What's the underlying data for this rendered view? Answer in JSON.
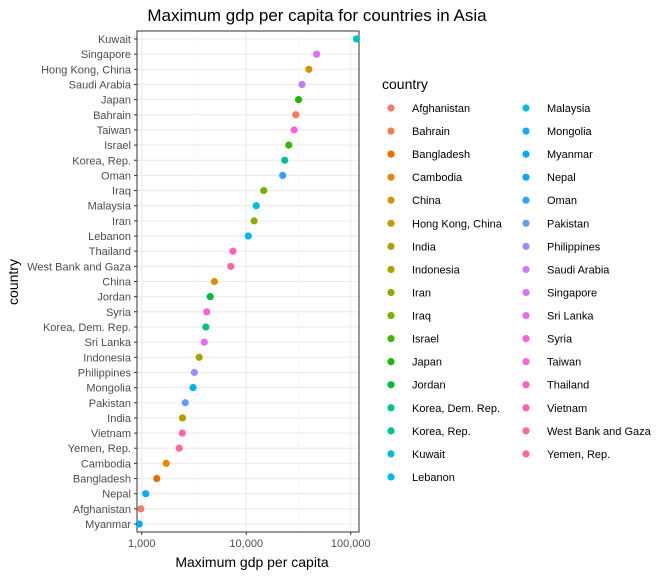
{
  "chart_data": {
    "type": "scatter",
    "title": "Maximum gdp per capita for countries in Asia",
    "xlabel": "Maximum gdp per capita",
    "ylabel": "country",
    "x_scale": "log10",
    "xlim": [
      900,
      120000
    ],
    "x_ticks": [
      1000,
      10000,
      100000
    ],
    "x_tick_labels": [
      "1,000",
      "10,000",
      "100,000"
    ],
    "grid": true,
    "legend": {
      "title": "country",
      "position": "right",
      "columns": 2
    },
    "points": [
      {
        "country": "Kuwait",
        "value": 113523,
        "color": "#00BFC4"
      },
      {
        "country": "Singapore",
        "value": 47143,
        "color": "#DE71F9"
      },
      {
        "country": "Hong Kong, China",
        "value": 39725,
        "color": "#C49A00"
      },
      {
        "country": "Saudi Arabia",
        "value": 34168,
        "color": "#C77CFF"
      },
      {
        "country": "Japan",
        "value": 31656,
        "color": "#1FB700"
      },
      {
        "country": "Bahrain",
        "value": 29796,
        "color": "#F37B59"
      },
      {
        "country": "Taiwan",
        "value": 28718,
        "color": "#F564E3"
      },
      {
        "country": "Israel",
        "value": 25523,
        "color": "#39B600"
      },
      {
        "country": "Korea, Rep.",
        "value": 23348,
        "color": "#00BF96"
      },
      {
        "country": "Oman",
        "value": 22316,
        "color": "#35A2FF"
      },
      {
        "country": "Iraq",
        "value": 14688,
        "color": "#7CAE00"
      },
      {
        "country": "Malaysia",
        "value": 12452,
        "color": "#00BBDA"
      },
      {
        "country": "Iran",
        "value": 11889,
        "color": "#8CAB00"
      },
      {
        "country": "Lebanon",
        "value": 10461,
        "color": "#00B8E5"
      },
      {
        "country": "Thailand",
        "value": 7458,
        "color": "#FF61C3"
      },
      {
        "country": "West Bank and Gaza",
        "value": 7111,
        "color": "#FF6A98"
      },
      {
        "country": "China",
        "value": 4959,
        "color": "#D39200"
      },
      {
        "country": "Jordan",
        "value": 4520,
        "color": "#00BA38"
      },
      {
        "country": "Syria",
        "value": 4185,
        "color": "#FB61D7"
      },
      {
        "country": "Korea, Dem. Rep.",
        "value": 4106,
        "color": "#00C08B"
      },
      {
        "country": "Sri Lanka",
        "value": 3970,
        "color": "#E76BF3"
      },
      {
        "country": "Indonesia",
        "value": 3541,
        "color": "#A3A500"
      },
      {
        "country": "Philippines",
        "value": 3190,
        "color": "#9590FF"
      },
      {
        "country": "Mongolia",
        "value": 3096,
        "color": "#00B0F6"
      },
      {
        "country": "Pakistan",
        "value": 2606,
        "color": "#619CFF"
      },
      {
        "country": "India",
        "value": 2452,
        "color": "#B0A000"
      },
      {
        "country": "Vietnam",
        "value": 2442,
        "color": "#FF65AE"
      },
      {
        "country": "Yemen, Rep.",
        "value": 2281,
        "color": "#FF6C91"
      },
      {
        "country": "Cambodia",
        "value": 1713,
        "color": "#E58700"
      },
      {
        "country": "Bangladesh",
        "value": 1391,
        "color": "#E86B00"
      },
      {
        "country": "Nepal",
        "value": 1091,
        "color": "#00A9FF"
      },
      {
        "country": "Afghanistan",
        "value": 978,
        "color": "#F8766D"
      },
      {
        "country": "Myanmar",
        "value": 944,
        "color": "#00ABFD"
      }
    ],
    "legend_entries": [
      {
        "label": "Afghanistan",
        "color": "#F8766D"
      },
      {
        "label": "Bahrain",
        "color": "#F37B59"
      },
      {
        "label": "Bangladesh",
        "color": "#E86B00"
      },
      {
        "label": "Cambodia",
        "color": "#E58700"
      },
      {
        "label": "China",
        "color": "#D39200"
      },
      {
        "label": "Hong Kong, China",
        "color": "#C49A00"
      },
      {
        "label": "India",
        "color": "#B0A000"
      },
      {
        "label": "Indonesia",
        "color": "#A3A500"
      },
      {
        "label": "Iran",
        "color": "#8CAB00"
      },
      {
        "label": "Iraq",
        "color": "#7CAE00"
      },
      {
        "label": "Israel",
        "color": "#39B600"
      },
      {
        "label": "Japan",
        "color": "#1FB700"
      },
      {
        "label": "Jordan",
        "color": "#00BA38"
      },
      {
        "label": "Korea, Dem. Rep.",
        "color": "#00C08B"
      },
      {
        "label": "Korea, Rep.",
        "color": "#00BF96"
      },
      {
        "label": "Kuwait",
        "color": "#00BFC4"
      },
      {
        "label": "Lebanon",
        "color": "#00B8E5"
      },
      {
        "label": "Malaysia",
        "color": "#00BBDA"
      },
      {
        "label": "Mongolia",
        "color": "#00B0F6"
      },
      {
        "label": "Myanmar",
        "color": "#00ABFD"
      },
      {
        "label": "Nepal",
        "color": "#00A9FF"
      },
      {
        "label": "Oman",
        "color": "#35A2FF"
      },
      {
        "label": "Pakistan",
        "color": "#619CFF"
      },
      {
        "label": "Philippines",
        "color": "#9590FF"
      },
      {
        "label": "Saudi Arabia",
        "color": "#C77CFF"
      },
      {
        "label": "Singapore",
        "color": "#DE71F9"
      },
      {
        "label": "Sri Lanka",
        "color": "#E76BF3"
      },
      {
        "label": "Syria",
        "color": "#FB61D7"
      },
      {
        "label": "Taiwan",
        "color": "#F564E3"
      },
      {
        "label": "Thailand",
        "color": "#FF61C3"
      },
      {
        "label": "Vietnam",
        "color": "#FF65AE"
      },
      {
        "label": "West Bank and Gaza",
        "color": "#FF6A98"
      },
      {
        "label": "Yemen, Rep.",
        "color": "#FF6C91"
      }
    ]
  }
}
